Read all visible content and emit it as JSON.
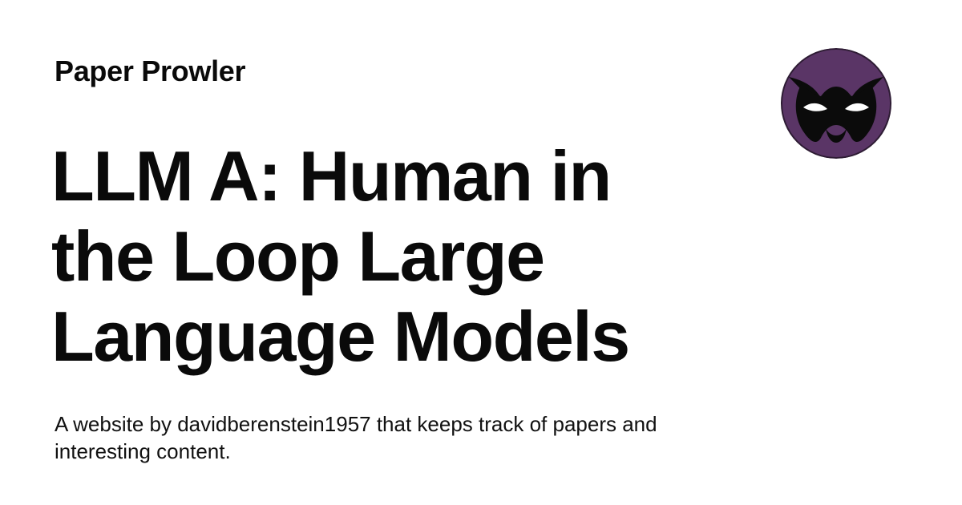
{
  "site": {
    "name": "Paper Prowler"
  },
  "post": {
    "title": "LLM A: Human in the Loop Large Language Models",
    "description": "A website by davidberenstein1957 that keeps track of papers and interesting content."
  },
  "avatar": {
    "icon": "masked-face-icon",
    "background_color": "#5a3566",
    "mask_color": "#0b0b0b",
    "eye_color": "#ffffff"
  }
}
